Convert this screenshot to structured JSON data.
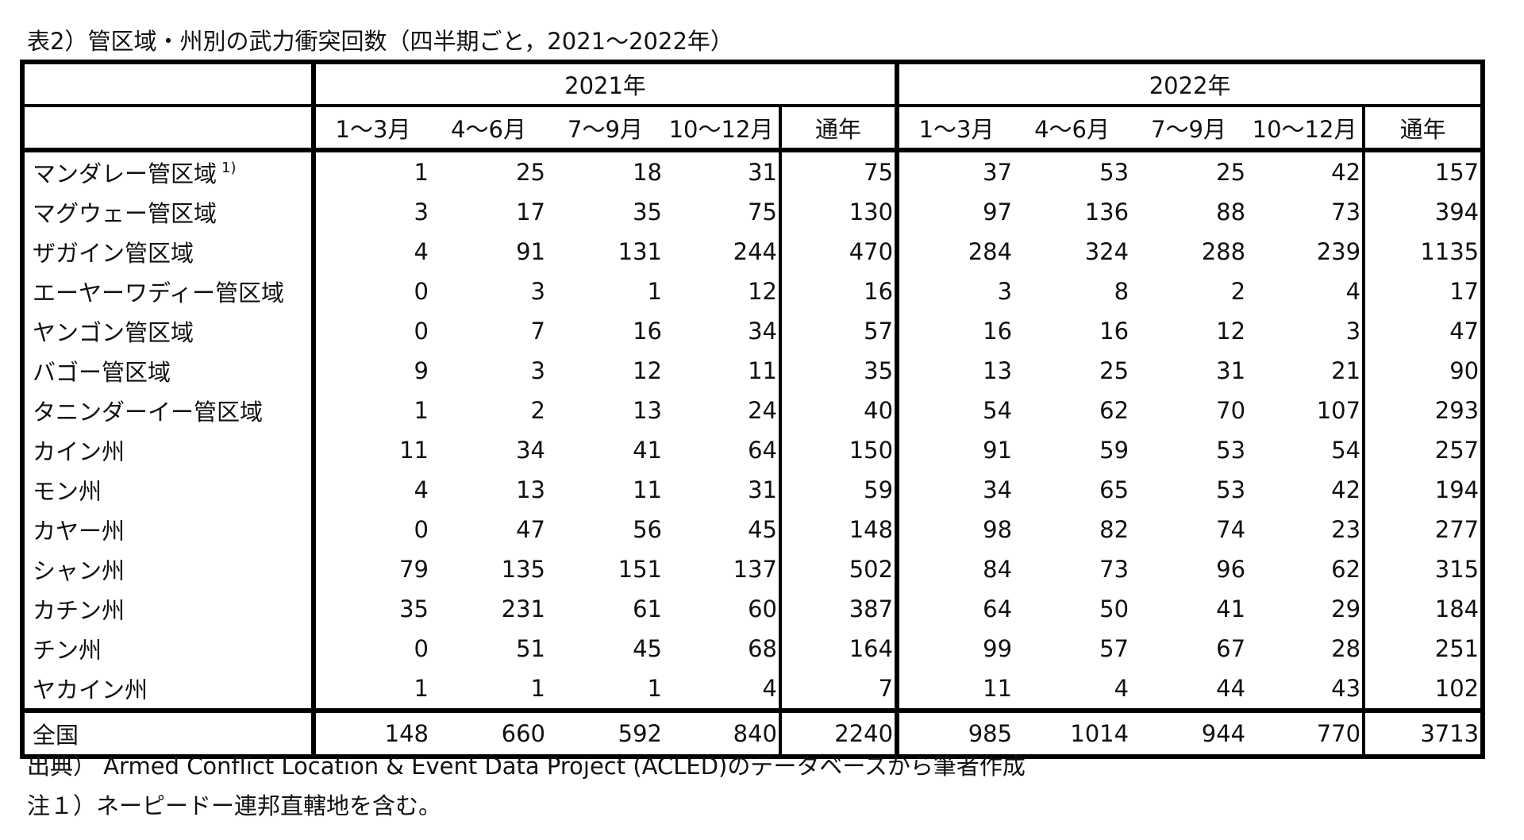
{
  "caption": "表2）管区域・州別の武力衝突回数（四半期ごと，2021～2022年）",
  "years": [
    "2021年",
    "2022年"
  ],
  "quarters": [
    "1～3月",
    "4～6月",
    "7～9月",
    "10～12月",
    "通年"
  ],
  "rows": [
    {
      "label": "マンダレー管区域",
      "mark": "1)",
      "y2021": [
        "1",
        "25",
        "18",
        "31",
        "75"
      ],
      "y2022": [
        "37",
        "53",
        "25",
        "42",
        "157"
      ]
    },
    {
      "label": "マグウェー管区域",
      "mark": "",
      "y2021": [
        "3",
        "17",
        "35",
        "75",
        "130"
      ],
      "y2022": [
        "97",
        "136",
        "88",
        "73",
        "394"
      ]
    },
    {
      "label": "ザガイン管区域",
      "mark": "",
      "y2021": [
        "4",
        "91",
        "131",
        "244",
        "470"
      ],
      "y2022": [
        "284",
        "324",
        "288",
        "239",
        "1135"
      ]
    },
    {
      "label": "エーヤーワディー管区域",
      "mark": "",
      "y2021": [
        "0",
        "3",
        "1",
        "12",
        "16"
      ],
      "y2022": [
        "3",
        "8",
        "2",
        "4",
        "17"
      ]
    },
    {
      "label": "ヤンゴン管区域",
      "mark": "",
      "y2021": [
        "0",
        "7",
        "16",
        "34",
        "57"
      ],
      "y2022": [
        "16",
        "16",
        "12",
        "3",
        "47"
      ]
    },
    {
      "label": "バゴー管区域",
      "mark": "",
      "y2021": [
        "9",
        "3",
        "12",
        "11",
        "35"
      ],
      "y2022": [
        "13",
        "25",
        "31",
        "21",
        "90"
      ]
    },
    {
      "label": "タニンダーイー管区域",
      "mark": "",
      "y2021": [
        "1",
        "2",
        "13",
        "24",
        "40"
      ],
      "y2022": [
        "54",
        "62",
        "70",
        "107",
        "293"
      ]
    },
    {
      "label": "カイン州",
      "mark": "",
      "y2021": [
        "11",
        "34",
        "41",
        "64",
        "150"
      ],
      "y2022": [
        "91",
        "59",
        "53",
        "54",
        "257"
      ]
    },
    {
      "label": "モン州",
      "mark": "",
      "y2021": [
        "4",
        "13",
        "11",
        "31",
        "59"
      ],
      "y2022": [
        "34",
        "65",
        "53",
        "42",
        "194"
      ]
    },
    {
      "label": "カヤー州",
      "mark": "",
      "y2021": [
        "0",
        "47",
        "56",
        "45",
        "148"
      ],
      "y2022": [
        "98",
        "82",
        "74",
        "23",
        "277"
      ]
    },
    {
      "label": "シャン州",
      "mark": "",
      "y2021": [
        "79",
        "135",
        "151",
        "137",
        "502"
      ],
      "y2022": [
        "84",
        "73",
        "96",
        "62",
        "315"
      ]
    },
    {
      "label": "カチン州",
      "mark": "",
      "y2021": [
        "35",
        "231",
        "61",
        "60",
        "387"
      ],
      "y2022": [
        "64",
        "50",
        "41",
        "29",
        "184"
      ]
    },
    {
      "label": "チン州",
      "mark": "",
      "y2021": [
        "0",
        "51",
        "45",
        "68",
        "164"
      ],
      "y2022": [
        "99",
        "57",
        "67",
        "28",
        "251"
      ]
    },
    {
      "label": "ヤカイン州",
      "mark": "",
      "y2021": [
        "1",
        "1",
        "1",
        "4",
        "7"
      ],
      "y2022": [
        "11",
        "4",
        "44",
        "43",
        "102"
      ]
    }
  ],
  "total": {
    "label": "全国",
    "y2021": [
      "148",
      "660",
      "592",
      "840",
      "2240"
    ],
    "y2022": [
      "985",
      "1014",
      "944",
      "770",
      "3713"
    ]
  },
  "source": "出典） Armed Conflict Location & Event Data Project (ACLED)のデータベースから筆者作成",
  "footnote": "注１）ネーピードー連邦直轄地を含む。"
}
